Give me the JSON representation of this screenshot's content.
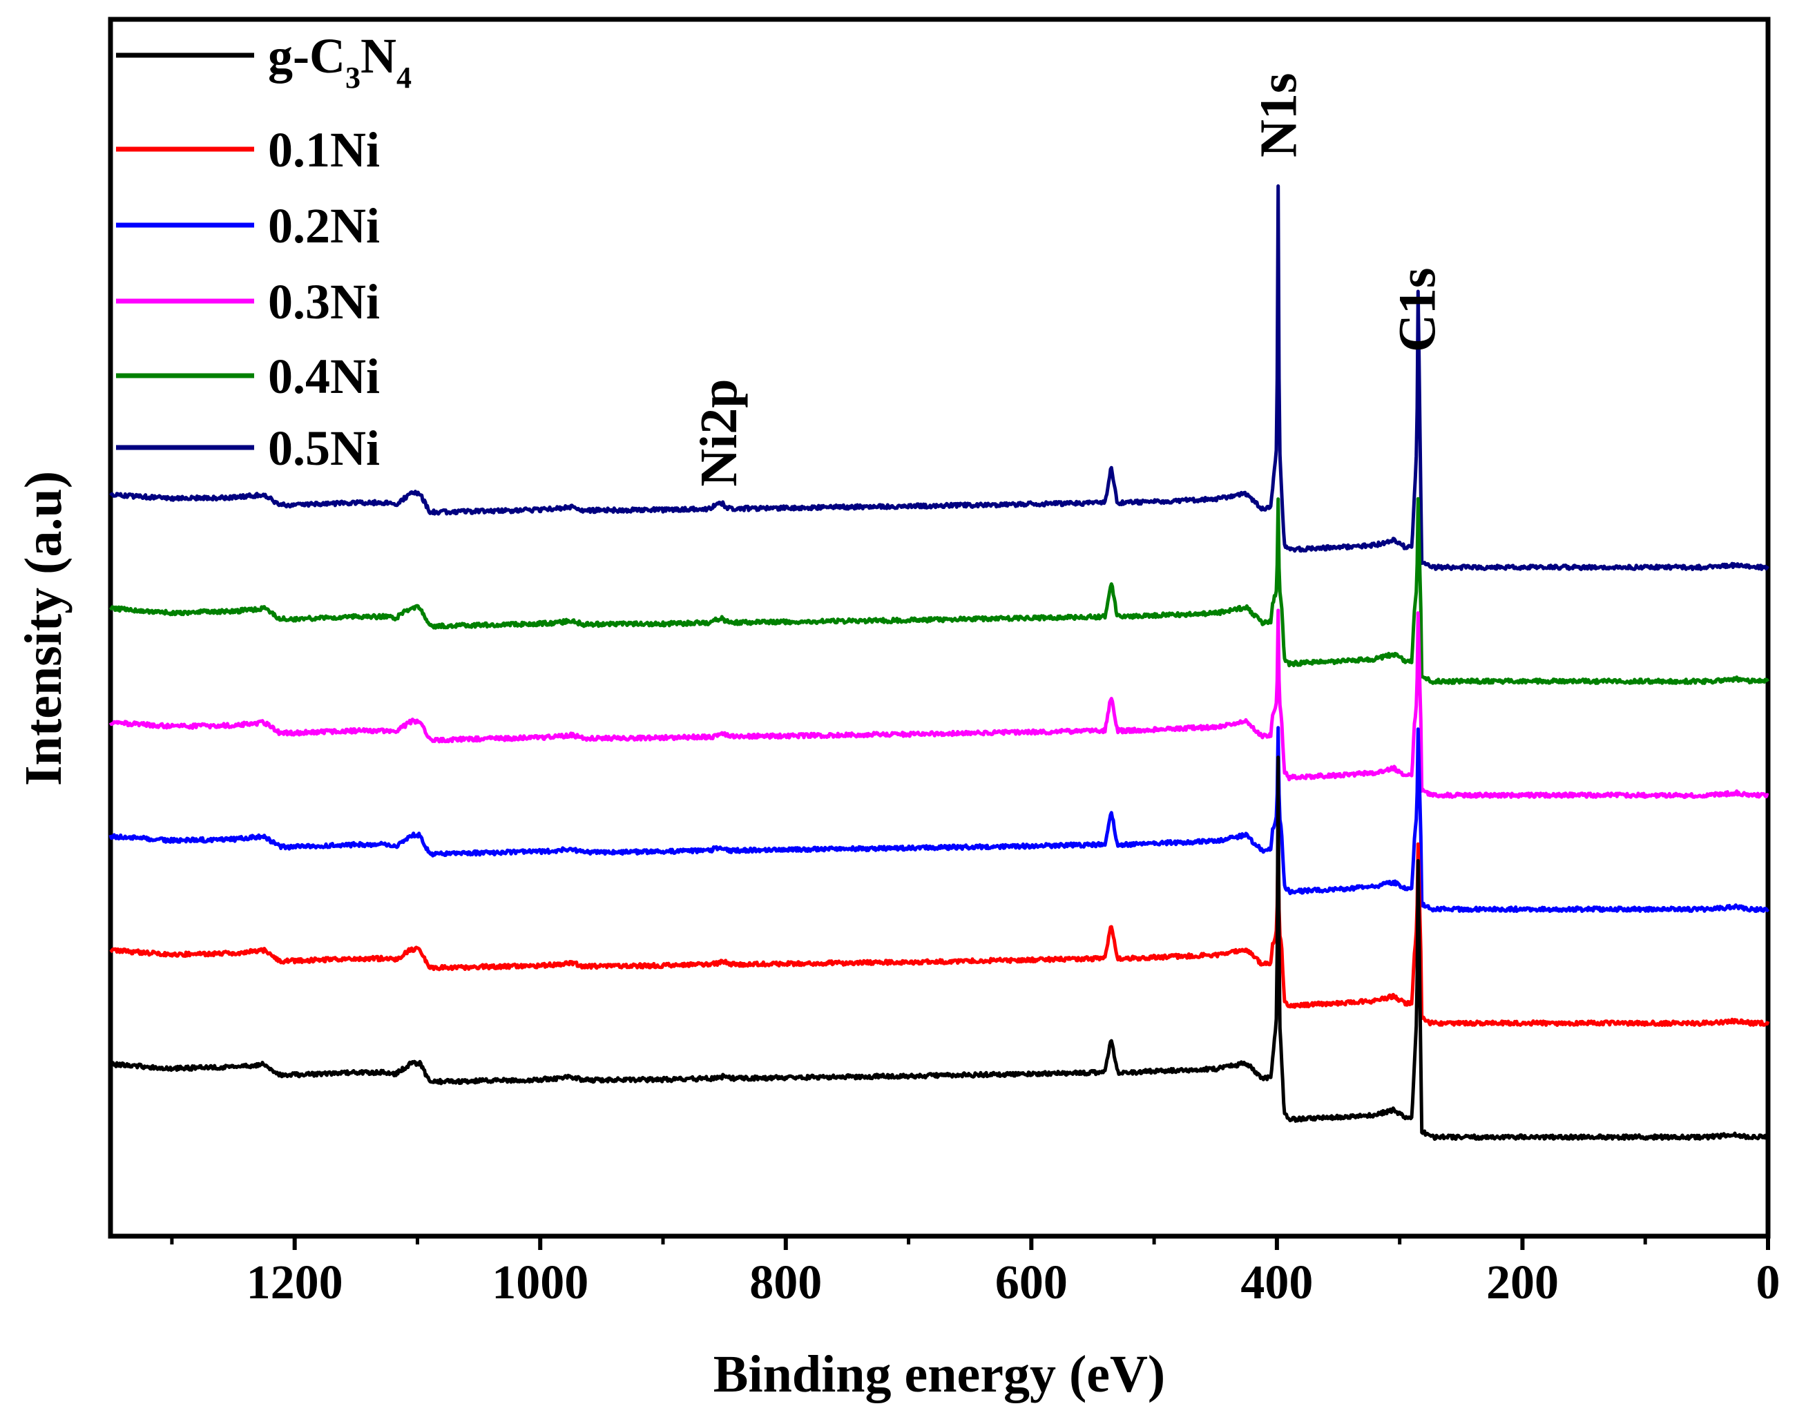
{
  "chart_data": {
    "type": "line",
    "title": "",
    "xlabel": "Binding energy (eV)",
    "ylabel": "Intensity (a.u)",
    "xlim": [
      1350,
      0
    ],
    "xticks": [
      1200,
      1000,
      800,
      600,
      400,
      200,
      0
    ],
    "xtick_labels": [
      "1200",
      "1000",
      "800",
      "600",
      "400",
      "200",
      "0"
    ],
    "legend_position": "top-left",
    "legend": [
      {
        "name": "g-C3N4",
        "base": "g-C",
        "sub1": "3",
        "mid": "N",
        "sub2": "4",
        "color": "#000000"
      },
      {
        "name": "0.1Ni",
        "color": "#ff0000"
      },
      {
        "name": "0.2Ni",
        "color": "#0000ff"
      },
      {
        "name": "0.3Ni",
        "color": "#ff00ff"
      },
      {
        "name": "0.4Ni",
        "color": "#008000"
      },
      {
        "name": "0.5Ni",
        "color": "#000080"
      }
    ],
    "annotations": [
      {
        "text": "Ni2p",
        "x": 855
      },
      {
        "text": "N1s",
        "x": 399
      },
      {
        "text": "C1s",
        "x": 286
      }
    ],
    "profile": {
      "x": [
        1350,
        1300,
        1250,
        1225,
        1212,
        1200,
        1150,
        1125,
        1118,
        1105,
        1098,
        1090,
        1000,
        985,
        975,
        965,
        900,
        855,
        850,
        845,
        700,
        540,
        535,
        530,
        525,
        450,
        425,
        412,
        405,
        400,
        399,
        398,
        394,
        390,
        350,
        320,
        305,
        295,
        290,
        286,
        285,
        282,
        275,
        200,
        50,
        25,
        15,
        0
      ],
      "y": [
        0.17,
        0.135,
        0.145,
        0.17,
        0.08,
        0.08,
        0.1,
        0.1,
        0.085,
        0.18,
        0.18,
        0.02,
        0.04,
        0.05,
        0.065,
        0.035,
        0.04,
        0.05,
        0.07,
        0.05,
        0.07,
        0.1,
        0.4,
        0.1,
        0.1,
        0.13,
        0.18,
        0.05,
        0.06,
        0.6,
        2.8,
        0.6,
        -0.25,
        -0.3,
        -0.28,
        -0.26,
        -0.22,
        -0.28,
        -0.28,
        0.6,
        1.9,
        -0.4,
        -0.45,
        -0.45,
        -0.45,
        -0.43,
        -0.45,
        -0.45
      ]
    },
    "series": [
      {
        "name": "g-C3N4",
        "color": "#000000",
        "offset": 0,
        "n1s_scale": 1.0,
        "c1s_scale": 1.0,
        "ni2p": 0
      },
      {
        "name": "0.1Ni",
        "color": "#ff0000",
        "offset": 1,
        "n1s_scale": 0.35,
        "c1s_scale": 0.55,
        "ni2p": 0.3
      },
      {
        "name": "0.2Ni",
        "color": "#0000ff",
        "offset": 2,
        "n1s_scale": 0.35,
        "c1s_scale": 0.55,
        "ni2p": 0.4
      },
      {
        "name": "0.3Ni",
        "color": "#ff00ff",
        "offset": 3,
        "n1s_scale": 0.35,
        "c1s_scale": 0.55,
        "ni2p": 0.5
      },
      {
        "name": "0.4Ni",
        "color": "#008000",
        "offset": 4,
        "n1s_scale": 0.35,
        "c1s_scale": 0.55,
        "ni2p": 0.6
      },
      {
        "name": "0.5Ni",
        "color": "#000080",
        "offset": 5,
        "n1s_scale": 1.0,
        "c1s_scale": 1.0,
        "ni2p": 1.0
      }
    ]
  }
}
